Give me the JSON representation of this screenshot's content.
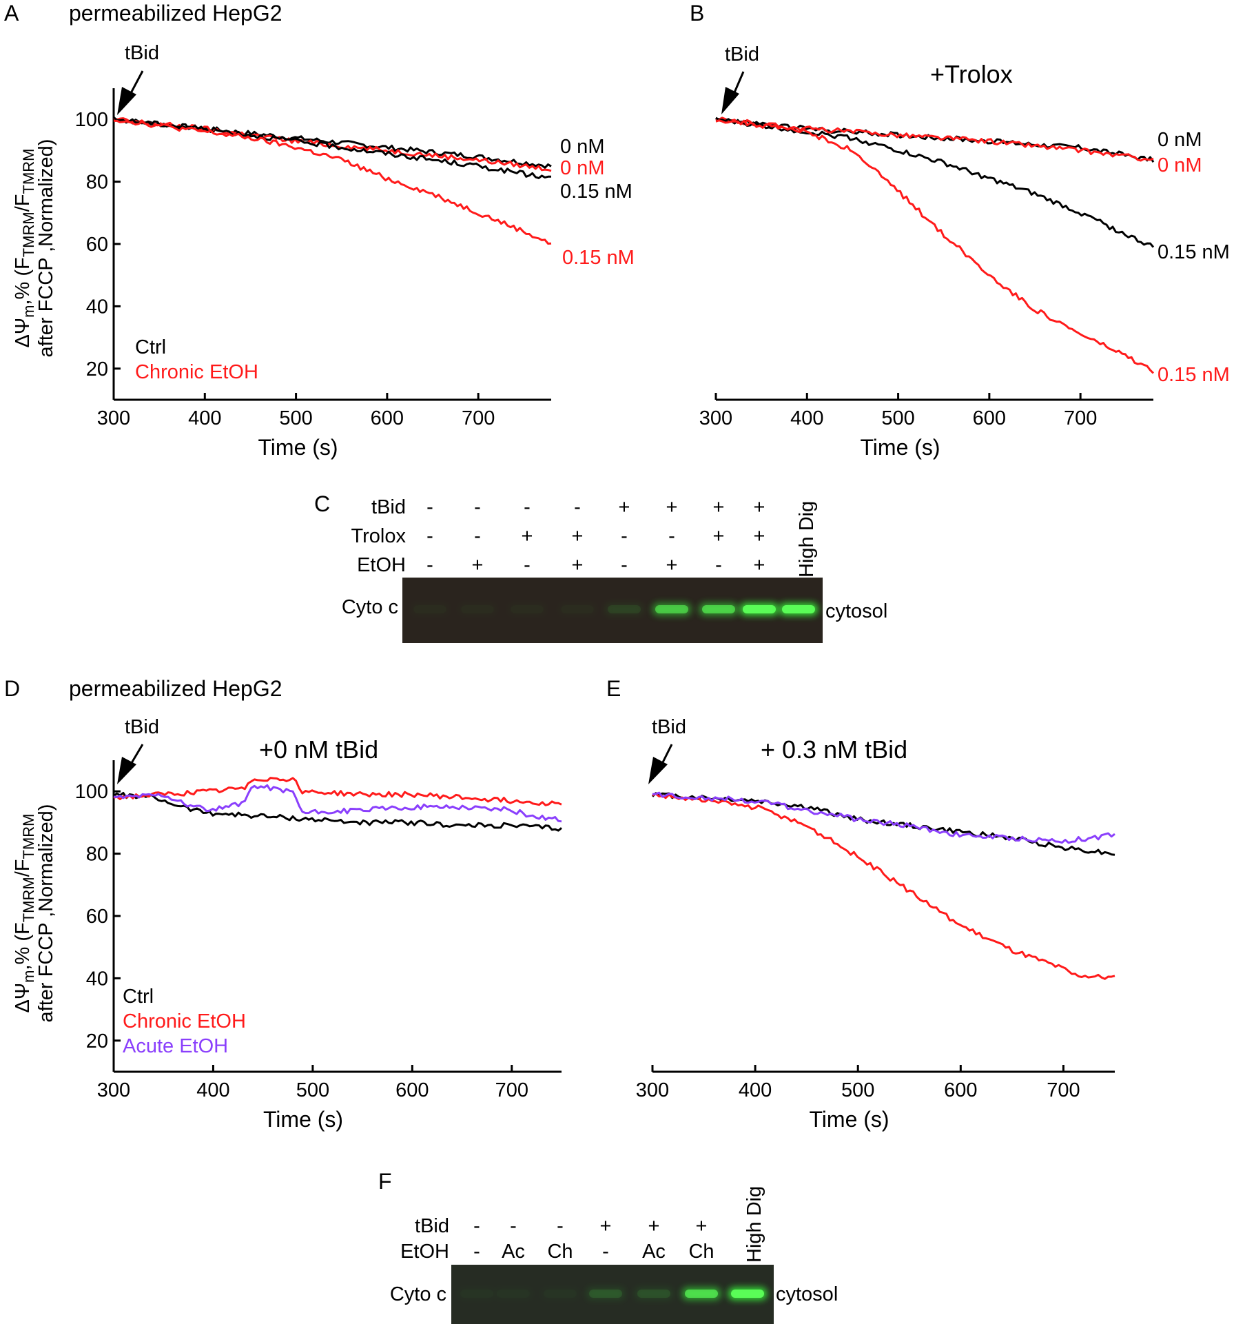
{
  "figure": {
    "panel_a": {
      "letter": "A",
      "title": "permeabilized HepG2",
      "arrow_label": "tBid",
      "ylabel_line1_pre": "ΔΨ",
      "ylabel_line1_sub": "m",
      "ylabel_line1_mid": ",% (F",
      "ylabel_line1_sub2": "TMRM",
      "ylabel_line1_mid2": "/F",
      "ylabel_line1_sub3": "TMRM",
      "ylabel_line2": "after FCCP ,Normalized)",
      "legend": [
        "Ctrl",
        "Chronic EtOH"
      ]
    },
    "panel_b": {
      "letter": "B",
      "arrow_label": "tBid",
      "title": "+Trolox"
    },
    "panel_c": {
      "letter": "C",
      "row_labels": [
        "tBid",
        "Trolox",
        "EtOH"
      ],
      "rows": [
        [
          "-",
          "-",
          "-",
          "-",
          "+",
          "+",
          "+",
          "+"
        ],
        [
          "-",
          "-",
          "+",
          "+",
          "-",
          "-",
          "+",
          "+"
        ],
        [
          "-",
          "+",
          "-",
          "+",
          "-",
          "+",
          "-",
          "+"
        ]
      ],
      "extra_lane": "High Dig",
      "band_label": "Cyto c",
      "fraction_label": "cytosol",
      "band_intensity": [
        0.02,
        0.02,
        0.02,
        0.02,
        0.08,
        0.55,
        0.6,
        0.95,
        0.95
      ]
    },
    "panel_d": {
      "letter": "D",
      "title": "permeabilized HepG2",
      "arrow_label": "tBid",
      "subtitle": "+0 nM tBid",
      "legend": [
        "Ctrl",
        "Chronic EtOH",
        "Acute EtOH"
      ]
    },
    "panel_e": {
      "letter": "E",
      "arrow_label": "tBid",
      "subtitle": "+ 0.3 nM tBid"
    },
    "panel_f": {
      "letter": "F",
      "row_labels": [
        "tBid",
        "EtOH"
      ],
      "rows": [
        [
          "-",
          "-",
          "-",
          "+",
          "+",
          "+"
        ],
        [
          "-",
          "Ac",
          "Ch",
          "-",
          "Ac",
          "Ch"
        ]
      ],
      "extra_lane": "High Dig",
      "band_label": "Cyto c",
      "fraction_label": "cytosol",
      "band_intensity": [
        0.02,
        0.02,
        0.02,
        0.12,
        0.1,
        0.65,
        0.95
      ]
    }
  },
  "chart_data": [
    {
      "panel": "A",
      "type": "line",
      "xlabel": "Time (s)",
      "xlim": [
        300,
        780
      ],
      "xticks": [
        300,
        400,
        500,
        600,
        700
      ],
      "ylim": [
        10,
        110
      ],
      "yticks": [
        20,
        40,
        60,
        80,
        100
      ],
      "series": [
        {
          "name": "Ctrl 0 nM",
          "label": "0 nM",
          "color": "#000000",
          "x": [
            300,
            400,
            500,
            600,
            700,
            780
          ],
          "y": [
            100,
            97,
            94,
            91,
            88,
            85
          ]
        },
        {
          "name": "Chronic EtOH 0 nM",
          "label": "0 nM",
          "color": "#ff1a1a",
          "x": [
            300,
            400,
            500,
            600,
            700,
            780
          ],
          "y": [
            100,
            97,
            93,
            90,
            87,
            84
          ]
        },
        {
          "name": "Ctrl 0.15 nM",
          "label": "0.15 nM",
          "color": "#000000",
          "x": [
            300,
            400,
            500,
            600,
            700,
            780
          ],
          "y": [
            100,
            97,
            93,
            89,
            85,
            81
          ]
        },
        {
          "name": "Chronic EtOH 0.15 nM",
          "label": "0.15 nM",
          "color": "#ff1a1a",
          "x": [
            300,
            400,
            450,
            500,
            550,
            600,
            650,
            700,
            750,
            780
          ],
          "y": [
            100,
            96,
            94,
            91,
            87,
            81,
            76,
            70,
            64,
            60
          ]
        }
      ]
    },
    {
      "panel": "B",
      "type": "line",
      "xlabel": "Time (s)",
      "xlim": [
        300,
        780
      ],
      "xticks": [
        300,
        400,
        500,
        600,
        700
      ],
      "ylim": [
        10,
        110
      ],
      "yticks": [],
      "series": [
        {
          "name": "Ctrl 0 nM",
          "label": "0 nM",
          "color": "#000000",
          "x": [
            300,
            400,
            500,
            600,
            700,
            780
          ],
          "y": [
            100,
            97,
            95,
            93,
            91,
            87
          ]
        },
        {
          "name": "Chronic EtOH 0 nM",
          "label": "0 nM",
          "color": "#ff1a1a",
          "x": [
            300,
            400,
            500,
            600,
            700,
            780
          ],
          "y": [
            100,
            97,
            95,
            93,
            90,
            87
          ]
        },
        {
          "name": "Ctrl 0.15 nM",
          "label": "0.15 nM",
          "color": "#000000",
          "x": [
            300,
            400,
            450,
            500,
            550,
            600,
            650,
            700,
            750,
            780
          ],
          "y": [
            100,
            96,
            94,
            90,
            86,
            81,
            76,
            70,
            63,
            59
          ]
        },
        {
          "name": "Chronic EtOH 0.15 nM",
          "label": "0.15 nM",
          "color": "#ff1a1a",
          "x": [
            300,
            400,
            450,
            500,
            550,
            600,
            650,
            700,
            750,
            780
          ],
          "y": [
            100,
            96,
            90,
            77,
            63,
            50,
            39,
            31,
            24,
            19
          ]
        }
      ]
    },
    {
      "panel": "D",
      "type": "line",
      "xlabel": "Time (s)",
      "xlim": [
        300,
        750
      ],
      "xticks": [
        300,
        400,
        500,
        600,
        700
      ],
      "ylim": [
        10,
        110
      ],
      "yticks": [
        20,
        40,
        60,
        80,
        100
      ],
      "series": [
        {
          "name": "Ctrl",
          "color": "#000000",
          "x": [
            300,
            340,
            380,
            400,
            450,
            500,
            550,
            600,
            650,
            700,
            750
          ],
          "y": [
            99,
            98,
            94,
            93,
            92,
            91,
            90,
            90,
            89,
            89,
            88
          ]
        },
        {
          "name": "Chronic EtOH",
          "color": "#ff1a1a",
          "x": [
            300,
            350,
            400,
            430,
            440,
            480,
            490,
            550,
            600,
            650,
            700,
            750
          ],
          "y": [
            98,
            99,
            100,
            101,
            104,
            104,
            100,
            99,
            99,
            98,
            97,
            96
          ]
        },
        {
          "name": "Acute EtOH",
          "color": "#8a3ffc",
          "x": [
            300,
            350,
            380,
            400,
            430,
            440,
            480,
            490,
            550,
            600,
            650,
            700,
            720,
            750
          ],
          "y": [
            98,
            99,
            95,
            94,
            96,
            102,
            100,
            93,
            94,
            95,
            95,
            94,
            92,
            91
          ]
        }
      ]
    },
    {
      "panel": "E",
      "type": "line",
      "xlabel": "Time (s)",
      "xlim": [
        300,
        750
      ],
      "xticks": [
        300,
        400,
        500,
        600,
        700
      ],
      "ylim": [
        10,
        110
      ],
      "yticks": [],
      "series": [
        {
          "name": "Ctrl",
          "color": "#000000",
          "x": [
            300,
            400,
            450,
            500,
            550,
            600,
            650,
            700,
            750
          ],
          "y": [
            99,
            97,
            95,
            91,
            89,
            87,
            85,
            82,
            80
          ]
        },
        {
          "name": "Chronic EtOH",
          "color": "#ff1a1a",
          "x": [
            300,
            400,
            450,
            500,
            550,
            600,
            650,
            700,
            710,
            750
          ],
          "y": [
            99,
            95,
            89,
            79,
            68,
            57,
            49,
            43,
            41,
            40
          ]
        },
        {
          "name": "Acute EtOH",
          "color": "#8a3ffc",
          "x": [
            300,
            400,
            450,
            500,
            550,
            600,
            650,
            700,
            750
          ],
          "y": [
            99,
            97,
            94,
            91,
            89,
            86,
            85,
            84,
            86
          ]
        }
      ]
    }
  ]
}
